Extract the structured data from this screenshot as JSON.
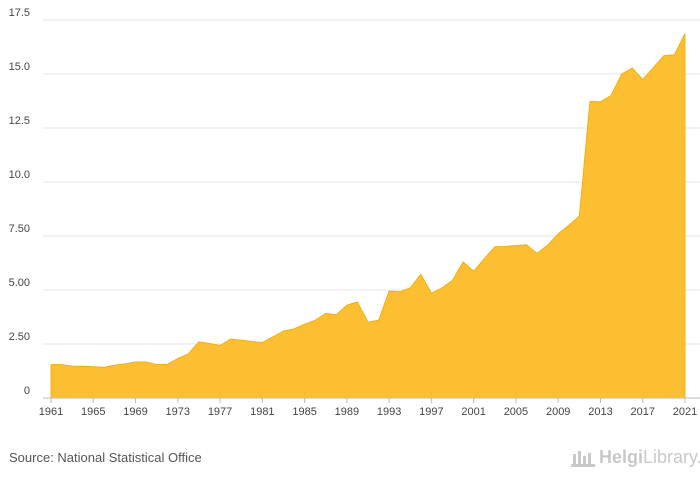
{
  "chart_data": {
    "type": "area",
    "title": "",
    "xlabel": "",
    "ylabel": "",
    "ylim": [
      0,
      17.5
    ],
    "xlim": [
      1961,
      2021
    ],
    "y_ticks": [
      0,
      2.5,
      5,
      7.5,
      10,
      12.5,
      15,
      17.5
    ],
    "y_tick_labels": [
      "0",
      "2.50",
      "5.00",
      "7.50",
      "10.0",
      "12.5",
      "15.0",
      "17.5"
    ],
    "x_ticks": [
      1961,
      1965,
      1969,
      1973,
      1977,
      1981,
      1985,
      1989,
      1993,
      1997,
      2001,
      2005,
      2009,
      2013,
      2017,
      2021
    ],
    "x_tick_labels": [
      "1961",
      "1965",
      "1969",
      "1973",
      "1977",
      "1981",
      "1985",
      "1989",
      "1993",
      "1997",
      "2001",
      "2005",
      "2009",
      "2013",
      "2017",
      "2021"
    ],
    "grid": true,
    "color": "#fbbf31",
    "series": [
      {
        "name": "value",
        "x": [
          1961,
          1962,
          1963,
          1964,
          1965,
          1966,
          1967,
          1968,
          1969,
          1970,
          1971,
          1972,
          1973,
          1974,
          1975,
          1976,
          1977,
          1978,
          1979,
          1980,
          1981,
          1982,
          1983,
          1984,
          1985,
          1986,
          1987,
          1988,
          1989,
          1990,
          1991,
          1992,
          1993,
          1994,
          1995,
          1996,
          1997,
          1998,
          1999,
          2000,
          2001,
          2002,
          2003,
          2004,
          2005,
          2006,
          2007,
          2008,
          2009,
          2010,
          2011,
          2012,
          2013,
          2014,
          2015,
          2016,
          2017,
          2018,
          2019,
          2020,
          2021
        ],
        "values": [
          1.55,
          1.55,
          1.48,
          1.47,
          1.45,
          1.42,
          1.52,
          1.58,
          1.67,
          1.67,
          1.55,
          1.56,
          1.83,
          2.05,
          2.6,
          2.53,
          2.43,
          2.73,
          2.68,
          2.62,
          2.57,
          2.83,
          3.1,
          3.2,
          3.42,
          3.6,
          3.92,
          3.85,
          4.3,
          4.45,
          3.52,
          3.6,
          4.95,
          4.92,
          5.1,
          5.73,
          4.85,
          5.1,
          5.45,
          6.3,
          5.88,
          6.45,
          7.0,
          7.02,
          7.06,
          7.1,
          6.7,
          7.08,
          7.6,
          8.0,
          8.42,
          13.73,
          13.72,
          14.0,
          15.0,
          15.28,
          14.75,
          15.3,
          15.85,
          15.9,
          16.87
        ]
      }
    ]
  },
  "footer": {
    "source": "Source: National Statistical Office",
    "brand_bold": "Helgi",
    "brand_light": "Library."
  }
}
